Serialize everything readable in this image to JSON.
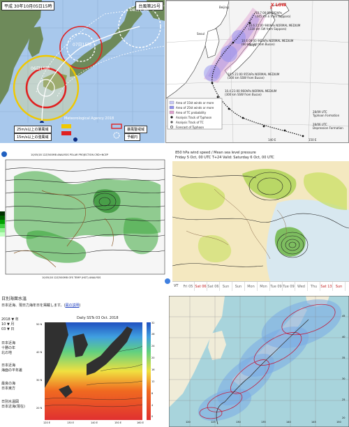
{
  "colors": {
    "jma_sea": "#a8c8ec",
    "jma_land": "#6e8a5a",
    "circle_red": "#e02020",
    "circle_yellow": "#f0c800",
    "storm_blue": "#9090f0",
    "storm_pink": "#e0a0d0",
    "green_field": "#3ca83c",
    "sst_red": "#e03030",
    "sst_yellow": "#f0e040",
    "sst_blue": "#2050c0",
    "prob_land": "#f0ecd8",
    "prob_sea": "#a8d4dc"
  },
  "jma": {
    "header_left": "平成 30年10月05日15時",
    "header_right": "台風第25号",
    "lbl_06": "06日15時",
    "lbl_07": "07日15時",
    "lbl_08": "08日15時",
    "credit": "Meteorological Agency 2018",
    "legend_25": "25m/s以上の暴風域",
    "legend_15": "15m/s以上の強風域",
    "legend_storm": "暴風警戒域",
    "legend_fcst": "予報円"
  },
  "jtwc": {
    "low_label": "X LOW",
    "city_beijing": "Beijing",
    "city_seoul": "Seoul",
    "city_tokyo": "Tokyo",
    "fix1_a": "10.7 00:00 992hPa",
    "fix1_b": "(445 km E from Sapporo)",
    "fix2_a": "10.6 21:00 980hPa  NORMAL  MEDIUM",
    "fix2_b": "(330 km SW from Sapporo)",
    "fix3_a": "10.6 09:00 965hPa  NORMAL  MEDIUM",
    "fix3_b": "(60 km SW from Busan)",
    "fix4_a": "10.5 21:00 955hPa  NORMAL  MEDIUM",
    "fix4_b": "(300 km SSW from Busan)",
    "fix5_a": "10.4 21:00 960hPa  NORMAL  MEDIUM",
    "fix5_b": "(300 km SSW from Busan)",
    "legend_items": [
      "Area of 15kt winds or more",
      "Area of 25kt winds or more",
      "Area of TC probability",
      "Analysis Track of Typhoon",
      "Analysis Track of TC",
      "Forecast of Typhoon"
    ],
    "formation1_a": "28/09 UTC",
    "formation1_b": "Typhoon Formation",
    "formation2_a": "28/06 UTC",
    "formation2_b": "Depression Formation",
    "lon_140": "140 E",
    "lon_150": "150 E"
  },
  "gfs": {
    "title_text": "10/05/18 12Z/500MB  ANALYSIS  POLAR PROJECTION  CRD+NCEP",
    "footer_text": "10/05/18 12Z/500MB  GFS  TEMP  (HGT)  ANALYSIS"
  },
  "ecmwf": {
    "header_line1": "850 hPa wind speed / Mean sea level pressure",
    "header_line2": "Friday 5 Oct, 00 UTC T+24 Valid: Saturday 6 Oct, 00 UTC",
    "vt_label": "VT",
    "times": [
      "Fri 05",
      "Sat 06",
      "Sat 06",
      "Sun 07",
      "Sun 07",
      "Mon 08",
      "Mon 08",
      "Tue 09",
      "Tue 09",
      "Wed 10",
      "Thu 11",
      "Sat 13",
      "Sun 14"
    ]
  },
  "sst": {
    "header": "日別海面水温",
    "subheader": "日本近海、現日力海年日を掲載します。(",
    "subheader_link": "図の説明",
    "subheader_end": ")",
    "sidebar_lines": [
      "2018 ▼ 年",
      "10 ▼ 月",
      "03 ▼ 日",
      "",
      "日本近海",
      "十勝の年",
      "北の地",
      "",
      "日本近海",
      "海面の平年差",
      "",
      "最良の海",
      "日本東方",
      "",
      "日別水温図",
      "日本近海(現在)"
    ],
    "chart_title": "Daily SSTs 03 Oct. 2018",
    "lat_labels": [
      "50 N",
      "40 N",
      "30 N",
      "20 N"
    ],
    "lon_labels": [
      "120 E",
      "130 E",
      "140 E",
      "150 E",
      "160 E"
    ],
    "scale_labels": [
      "32",
      "30",
      "28",
      "26",
      "24",
      "22",
      "20",
      "18",
      "16",
      "14",
      "12",
      "10",
      "8",
      "6",
      "4",
      "2",
      "0"
    ]
  },
  "prob": {
    "lon_labels": [
      "120",
      "125",
      "130",
      "135",
      "140",
      "145",
      "150"
    ],
    "lat_labels": [
      "45",
      "40",
      "35",
      "30",
      "25",
      "20"
    ]
  }
}
